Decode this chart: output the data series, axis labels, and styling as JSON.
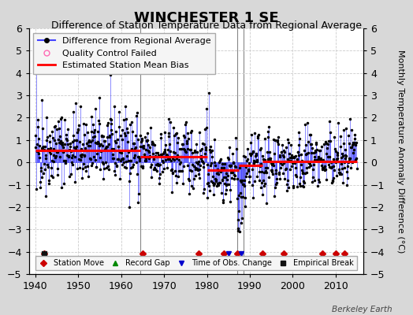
{
  "title": "WINCHESTER 1 SE",
  "subtitle": "Difference of Station Temperature Data from Regional Average",
  "ylabel": "Monthly Temperature Anomaly Difference (°C)",
  "xlim": [
    1938.5,
    2016.5
  ],
  "ylim": [
    -5,
    6
  ],
  "yticks": [
    -5,
    -4,
    -3,
    -2,
    -1,
    0,
    1,
    2,
    3,
    4,
    5,
    6
  ],
  "xticks": [
    1940,
    1950,
    1960,
    1970,
    1980,
    1990,
    2000,
    2010
  ],
  "start_year": 1940,
  "end_year": 2015,
  "figure_background": "#d8d8d8",
  "plot_background": "#ffffff",
  "line_color": "#4444ff",
  "dot_color": "#000000",
  "bias_color": "#ff0000",
  "grid_color": "#cccccc",
  "station_move_color": "#cc0000",
  "obs_change_color": "#0000cc",
  "empirical_break_color": "#111111",
  "record_gap_color": "#008800",
  "legend_fontsize": 8,
  "title_fontsize": 13,
  "subtitle_fontsize": 9,
  "ylabel_fontsize": 8,
  "tick_fontsize": 9,
  "watermark": "Berkeley Earth",
  "seed": 42,
  "bias_segments": [
    {
      "start": 1940.0,
      "end": 1964.5,
      "value": 0.55
    },
    {
      "start": 1964.5,
      "end": 1980.0,
      "value": 0.25
    },
    {
      "start": 1980.0,
      "end": 1987.5,
      "value": -0.35
    },
    {
      "start": 1987.5,
      "end": 1993.0,
      "value": -0.15
    },
    {
      "start": 1993.0,
      "end": 2015.0,
      "value": 0.05
    }
  ],
  "tall_lines": [
    1964.5,
    1987.0,
    1988.5
  ],
  "station_moves": [
    1942,
    1965,
    1978,
    1984,
    1987,
    1993,
    1998,
    2007,
    2010,
    2012
  ],
  "obs_changes": [
    1985,
    1988
  ],
  "empirical_breaks": [
    1942
  ],
  "record_gaps": []
}
